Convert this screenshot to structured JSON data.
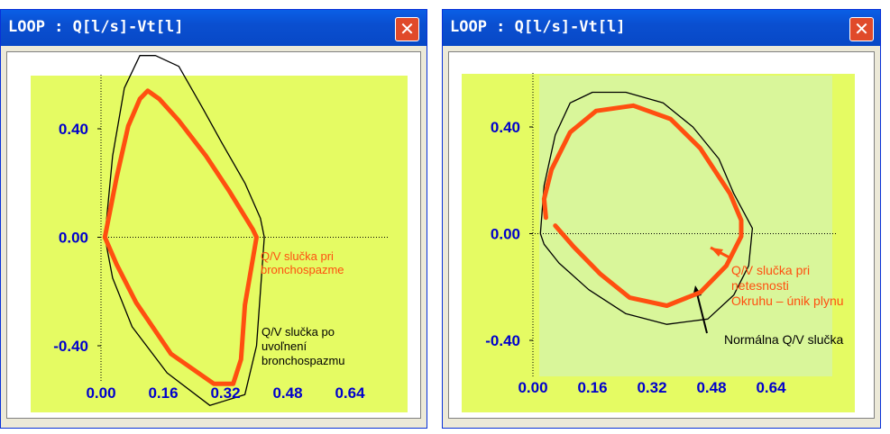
{
  "windows": [
    {
      "title": "LOOP : Q[l/s]-Vt[l]",
      "close_icon": "close-icon",
      "annotations": [
        "Q/V slučka  pri",
        "bronchospazme",
        "Q/V slučka po",
        "uvoľnení",
        "bronchospazmu"
      ]
    },
    {
      "title": "LOOP : Q[l/s]-Vt[l]",
      "close_icon": "close-icon",
      "annotations": [
        "Q/V slučka pri",
        "netesnosti",
        "Okruhu – únik plynu",
        "Normálna Q/V slučka"
      ]
    }
  ],
  "colors": {
    "plot_bg": "#e5fb63",
    "plot_inner_bg": "#d9f69a",
    "loop_red": "#ff4f10",
    "axis_text": "#0000cc",
    "loop_black": "#000000"
  },
  "chart_data": [
    {
      "type": "line",
      "title": "",
      "xlabel": "",
      "ylabel": "",
      "xticks": [
        "0.00",
        "0.16",
        "0.32",
        "0.48",
        "0.64"
      ],
      "yticks": [
        "0.40",
        "0.00",
        "-0.40"
      ],
      "xlim": [
        0.0,
        0.72
      ],
      "ylim": [
        -0.62,
        0.68
      ],
      "series": [
        {
          "name": "Q/V slučka  pri bronchospazme",
          "color": "#ff4f10",
          "closed": true,
          "points": [
            [
              0.01,
              0.0
            ],
            [
              0.04,
              0.22
            ],
            [
              0.07,
              0.41
            ],
            [
              0.1,
              0.51
            ],
            [
              0.12,
              0.54
            ],
            [
              0.15,
              0.51
            ],
            [
              0.2,
              0.43
            ],
            [
              0.27,
              0.3
            ],
            [
              0.33,
              0.17
            ],
            [
              0.39,
              0.03
            ],
            [
              0.4,
              0.0
            ],
            [
              0.37,
              -0.25
            ],
            [
              0.36,
              -0.45
            ],
            [
              0.34,
              -0.54
            ],
            [
              0.29,
              -0.54
            ],
            [
              0.18,
              -0.43
            ],
            [
              0.09,
              -0.24
            ],
            [
              0.04,
              -0.1
            ],
            [
              0.01,
              0.0
            ]
          ]
        },
        {
          "name": "Q/V slučka po uvoľnení bronchospazmu",
          "color": "#000000",
          "closed": true,
          "points": [
            [
              0.01,
              0.0
            ],
            [
              0.03,
              0.3
            ],
            [
              0.06,
              0.55
            ],
            [
              0.1,
              0.67
            ],
            [
              0.14,
              0.67
            ],
            [
              0.2,
              0.63
            ],
            [
              0.26,
              0.48
            ],
            [
              0.31,
              0.35
            ],
            [
              0.37,
              0.2
            ],
            [
              0.41,
              0.07
            ],
            [
              0.42,
              0.0
            ],
            [
              0.41,
              -0.2
            ],
            [
              0.4,
              -0.4
            ],
            [
              0.37,
              -0.58
            ],
            [
              0.28,
              -0.62
            ],
            [
              0.17,
              -0.5
            ],
            [
              0.08,
              -0.33
            ],
            [
              0.03,
              -0.15
            ],
            [
              0.01,
              0.0
            ]
          ]
        }
      ]
    },
    {
      "type": "line",
      "title": "",
      "xlabel": "",
      "ylabel": "",
      "xticks": [
        "0.00",
        "0.16",
        "0.32",
        "0.48",
        "0.64"
      ],
      "yticks": [
        "0.40",
        "0.00",
        "-0.40"
      ],
      "xlim": [
        0.0,
        0.72
      ],
      "ylim": [
        -0.62,
        0.68
      ],
      "series": [
        {
          "name": "Q/V slučka pri netesnosti Okruhu – únik plynu",
          "color": "#ff4f10",
          "closed": false,
          "points": [
            [
              0.06,
              0.03
            ],
            [
              0.11,
              -0.05
            ],
            [
              0.18,
              -0.15
            ],
            [
              0.26,
              -0.24
            ],
            [
              0.36,
              -0.27
            ],
            [
              0.45,
              -0.22
            ],
            [
              0.52,
              -0.12
            ],
            [
              0.56,
              -0.01
            ],
            [
              0.56,
              0.05
            ],
            [
              0.53,
              0.15
            ],
            [
              0.45,
              0.32
            ],
            [
              0.37,
              0.43
            ],
            [
              0.27,
              0.48
            ],
            [
              0.17,
              0.46
            ],
            [
              0.1,
              0.38
            ],
            [
              0.05,
              0.24
            ],
            [
              0.03,
              0.13
            ],
            [
              0.035,
              0.06
            ]
          ]
        },
        {
          "name": "Normálna Q/V slučka",
          "color": "#000000",
          "closed": true,
          "points": [
            [
              0.02,
              0.0
            ],
            [
              0.03,
              0.18
            ],
            [
              0.06,
              0.37
            ],
            [
              0.1,
              0.49
            ],
            [
              0.16,
              0.53
            ],
            [
              0.25,
              0.53
            ],
            [
              0.35,
              0.49
            ],
            [
              0.43,
              0.4
            ],
            [
              0.5,
              0.28
            ],
            [
              0.54,
              0.15
            ],
            [
              0.59,
              0.02
            ],
            [
              0.58,
              -0.12
            ],
            [
              0.54,
              -0.23
            ],
            [
              0.47,
              -0.32
            ],
            [
              0.36,
              -0.34
            ],
            [
              0.25,
              -0.3
            ],
            [
              0.15,
              -0.21
            ],
            [
              0.07,
              -0.11
            ],
            [
              0.03,
              -0.04
            ],
            [
              0.02,
              0.0
            ]
          ]
        }
      ]
    }
  ]
}
